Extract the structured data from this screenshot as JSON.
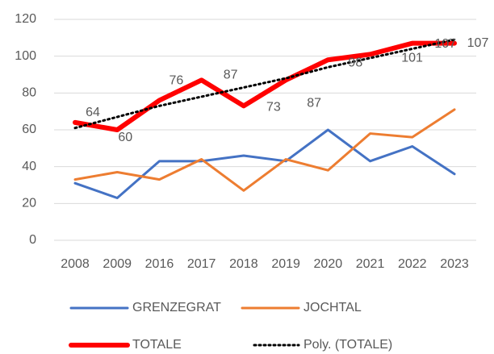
{
  "chart_data": {
    "type": "line",
    "categories": [
      "2008",
      "2009",
      "2016",
      "2017",
      "2018",
      "2019",
      "2020",
      "2021",
      "2022",
      "2023"
    ],
    "series": [
      {
        "name": "GRENZEGRAT",
        "color": "#4472c4",
        "values": [
          31,
          23,
          43,
          43,
          46,
          43,
          60,
          43,
          51,
          36
        ]
      },
      {
        "name": "JOCHTAL",
        "color": "#ed7d31",
        "values": [
          33,
          37,
          33,
          44,
          27,
          44,
          38,
          58,
          56,
          71
        ]
      },
      {
        "name": "TOTALE",
        "color": "#ff0000",
        "values": [
          64,
          60,
          76,
          87,
          73,
          87,
          98,
          101,
          107,
          107
        ],
        "data_labels": true
      },
      {
        "name": "Poly. (TOTALE)",
        "color": "#000000",
        "style": "dotted",
        "values": [
          61,
          67,
          73,
          78,
          83,
          88,
          94,
          99,
          104,
          109
        ]
      }
    ],
    "ylim": [
      0,
      120
    ],
    "yticks": [
      0,
      20,
      40,
      60,
      80,
      100,
      120
    ],
    "grid": true,
    "legend": "bottom"
  }
}
